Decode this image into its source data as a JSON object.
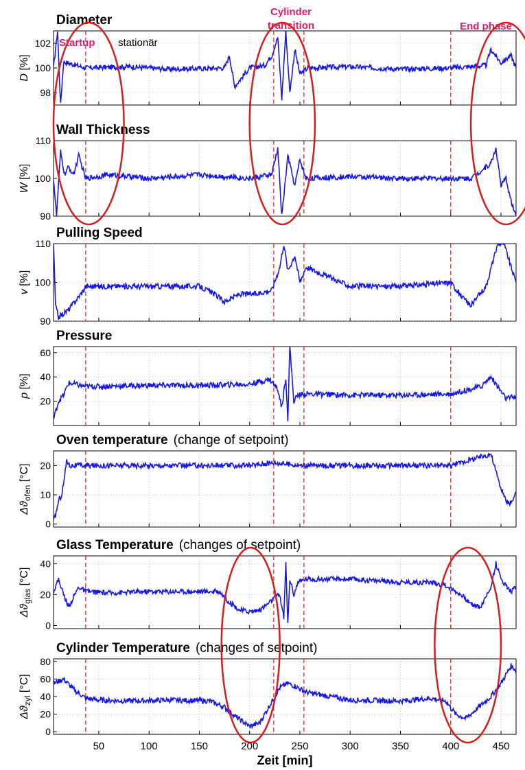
{
  "xlabel": "Zeit [min]",
  "x_ticks": [
    50,
    100,
    150,
    200,
    250,
    300,
    350,
    400,
    450
  ],
  "xlim": [
    5,
    465
  ],
  "phase_lines": [
    37,
    224,
    254,
    400
  ],
  "phase_labels": [
    {
      "text": "Startup",
      "x": 20
    },
    {
      "text": "stationär",
      "x": 70
    },
    {
      "text": "Cylinder transition",
      "x": 238
    },
    {
      "text": "End phase",
      "x": 440
    }
  ],
  "highlight_regions": [
    {
      "label": "startup",
      "x_range": [
        5,
        75
      ],
      "panels": [
        "diameter",
        "wall_thickness"
      ]
    },
    {
      "label": "cylinder-transition",
      "x_range": [
        200,
        265
      ],
      "panels": [
        "diameter",
        "wall_thickness"
      ]
    },
    {
      "label": "end-phase",
      "x_range": [
        420,
        490
      ],
      "panels": [
        "diameter",
        "wall_thickness"
      ]
    },
    {
      "label": "glass-dip-1",
      "x_range": [
        172,
        230
      ],
      "panels": [
        "glass_temperature",
        "cylinder_temperature"
      ]
    },
    {
      "label": "glass-dip-2",
      "x_range": [
        384,
        450
      ],
      "panels": [
        "glass_temperature",
        "cylinder_temperature"
      ]
    }
  ],
  "colors": {
    "series": "#1616e6",
    "phase": "#e21a1a",
    "label_accent": "#e8196b",
    "ellipse": "#d61c1c"
  },
  "chart_data": [
    {
      "type": "line",
      "id": "diameter",
      "title": "Diameter",
      "title_suffix": "",
      "ylabel": "D [%]",
      "ylim": [
        97,
        103
      ],
      "y_ticks": [
        98,
        100,
        102
      ],
      "series": [
        {
          "x": [
            5,
            9,
            12,
            15,
            37,
            80,
            120,
            175,
            180,
            185,
            200,
            215,
            222,
            228,
            232,
            236,
            240,
            245,
            250,
            258,
            300,
            350,
            400,
            435,
            440,
            450,
            460,
            465
          ],
          "y": [
            100,
            103,
            97,
            100.5,
            100,
            100.1,
            99.9,
            100,
            101,
            98.5,
            100,
            100.2,
            101,
            102.5,
            97.5,
            103,
            98,
            101.5,
            99.5,
            100,
            100.1,
            99.9,
            100,
            100.2,
            101.5,
            100.4,
            101,
            100
          ]
        }
      ]
    },
    {
      "type": "line",
      "id": "wall_thickness",
      "title": "Wall Thickness",
      "title_suffix": "",
      "ylabel": "W [%]",
      "ylim": [
        90,
        110
      ],
      "y_ticks": [
        90,
        100,
        110
      ],
      "series": [
        {
          "x": [
            5,
            8,
            12,
            16,
            20,
            25,
            30,
            37,
            60,
            100,
            150,
            200,
            222,
            228,
            232,
            238,
            245,
            250,
            256,
            300,
            350,
            400,
            420,
            440,
            445,
            450,
            455,
            460,
            465
          ],
          "y": [
            100,
            90,
            107,
            101,
            103,
            101,
            106,
            100,
            101,
            100,
            101,
            100,
            101,
            108,
            90,
            106,
            98,
            105,
            100,
            100.5,
            100,
            100,
            100,
            104,
            108,
            98,
            100,
            94,
            90
          ]
        }
      ]
    },
    {
      "type": "line",
      "id": "pulling_speed",
      "title": "Pulling Speed",
      "title_suffix": "",
      "ylabel": "v [%]",
      "ylim": [
        90,
        110
      ],
      "y_ticks": [
        90,
        100,
        110
      ],
      "series": [
        {
          "x": [
            5,
            7,
            10,
            20,
            35,
            37,
            60,
            100,
            150,
            165,
            175,
            190,
            205,
            222,
            230,
            234,
            238,
            245,
            250,
            256,
            300,
            350,
            400,
            412,
            420,
            435,
            447,
            453,
            460,
            465
          ],
          "y": [
            110,
            94,
            91,
            93,
            98,
            99,
            99,
            99,
            99,
            97,
            95,
            97,
            97,
            98,
            104,
            110,
            103,
            107,
            100,
            104,
            99,
            99,
            100,
            96,
            94,
            99,
            110,
            110,
            104,
            100
          ]
        }
      ]
    },
    {
      "type": "line",
      "id": "pressure",
      "title": "Pressure",
      "title_suffix": "",
      "ylabel": "p [%]",
      "ylim": [
        0,
        65
      ],
      "y_ticks": [
        20,
        40,
        60
      ],
      "series": [
        {
          "x": [
            5,
            10,
            15,
            20,
            37,
            100,
            150,
            200,
            220,
            228,
            232,
            236,
            238,
            240,
            244,
            248,
            256,
            300,
            350,
            400,
            430,
            440,
            450,
            455,
            465
          ],
          "y": [
            5,
            20,
            25,
            35,
            32,
            33,
            33,
            34,
            38,
            30,
            15,
            40,
            5,
            65,
            20,
            25,
            26,
            25,
            25,
            26,
            32,
            40,
            28,
            22,
            24
          ]
        }
      ]
    },
    {
      "type": "line",
      "id": "oven_temperature",
      "title": "Oven temperature",
      "title_suffix": "(change of setpoint)",
      "ylabel": "Δϑofen [°C]",
      "ylabel_main": "Δϑ",
      "ylabel_sub": "ofen",
      "ylabel_unit": " [°C]",
      "ylim": [
        -1,
        25
      ],
      "y_ticks": [
        0,
        10,
        20
      ],
      "series": [
        {
          "x": [
            5,
            7,
            10,
            13,
            16,
            18,
            21,
            30,
            100,
            200,
            224,
            254,
            300,
            400,
            440,
            445,
            450,
            455,
            460,
            465
          ],
          "y": [
            1,
            3,
            8,
            10,
            16,
            22,
            20,
            20,
            20,
            20,
            21,
            20,
            20,
            20,
            24,
            18,
            12,
            8,
            7,
            11
          ]
        }
      ]
    },
    {
      "type": "line",
      "id": "glass_temperature",
      "title": "Glass Temperature",
      "title_suffix": "(changes of setpoint)",
      "ylabel": "Δϑglas [°C]",
      "ylabel_main": "Δϑ",
      "ylabel_sub": "glas",
      "ylabel_unit": " [°C]",
      "ylim": [
        -2,
        45
      ],
      "y_ticks": [
        0,
        20,
        40
      ],
      "series": [
        {
          "x": [
            5,
            10,
            15,
            20,
            30,
            37,
            60,
            100,
            150,
            170,
            180,
            190,
            200,
            210,
            220,
            225,
            230,
            234,
            236,
            238,
            240,
            244,
            248,
            256,
            300,
            350,
            380,
            395,
            410,
            420,
            430,
            440,
            445,
            450,
            460,
            465
          ],
          "y": [
            22,
            30,
            20,
            12,
            25,
            22,
            21,
            22,
            22,
            22,
            15,
            10,
            9,
            10,
            15,
            18,
            20,
            5,
            40,
            1,
            30,
            20,
            28,
            30,
            30,
            28,
            28,
            26,
            20,
            14,
            12,
            25,
            40,
            30,
            22,
            25
          ]
        }
      ]
    },
    {
      "type": "line",
      "id": "cylinder_temperature",
      "title": "Cylinder Temperature",
      "title_suffix": "(changes of setpoint)",
      "ylabel": "Δϑzyl [°C]",
      "ylabel_main": "Δϑ",
      "ylabel_sub": "zyl",
      "ylabel_unit": " [°C]",
      "ylim": [
        -3,
        83
      ],
      "y_ticks": [
        0,
        20,
        40,
        60,
        80
      ],
      "series": [
        {
          "x": [
            5,
            15,
            25,
            37,
            50,
            80,
            120,
            160,
            175,
            185,
            195,
            200,
            210,
            220,
            230,
            238,
            245,
            256,
            300,
            350,
            380,
            395,
            405,
            415,
            430,
            440,
            450,
            460,
            465
          ],
          "y": [
            55,
            60,
            48,
            38,
            36,
            35,
            36,
            35,
            28,
            18,
            10,
            6,
            10,
            30,
            50,
            55,
            52,
            45,
            36,
            35,
            38,
            35,
            20,
            15,
            30,
            40,
            55,
            75,
            70
          ]
        }
      ]
    }
  ]
}
